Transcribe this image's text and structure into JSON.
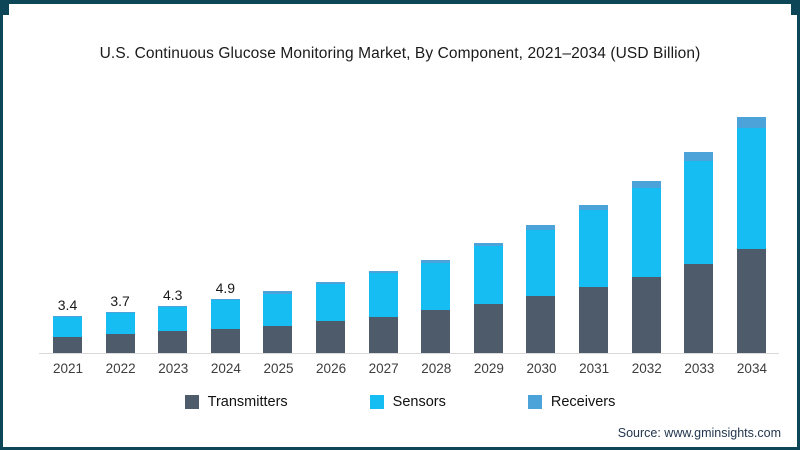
{
  "title": "U.S. Continuous Glucose Monitoring Market, By Component, 2021–2034 (USD Billion)",
  "source": "Source: www.gminsights.com",
  "colors": {
    "frame_border": "#0d4656",
    "transmitters": "#4e5b6b",
    "sensors": "#15bdf2",
    "receivers": "#4ba3d9",
    "axis_line": "#d9d9d9",
    "title_text": "#1a1a1a",
    "tick_text": "#3d3d3d",
    "source_text": "#233750",
    "background": "#ffffff"
  },
  "chart_data": {
    "type": "bar",
    "stacked": true,
    "title": "U.S. Continuous Glucose Monitoring Market, By Component, 2021–2034 (USD Billion)",
    "xlabel": "",
    "ylabel": "USD Billion",
    "ylim": [
      0,
      22
    ],
    "grid": false,
    "legend_position": "bottom",
    "categories": [
      "2021",
      "2022",
      "2023",
      "2024",
      "2025",
      "2026",
      "2027",
      "2028",
      "2029",
      "2030",
      "2031",
      "2032",
      "2033",
      "2034"
    ],
    "series": [
      {
        "name": "Transmitters",
        "color": "#4e5b6b",
        "values": [
          1.5,
          1.7,
          2.0,
          2.2,
          2.5,
          2.9,
          3.3,
          3.9,
          4.5,
          5.2,
          6.0,
          6.9,
          8.1,
          9.5
        ]
      },
      {
        "name": "Sensors",
        "color": "#15bdf2",
        "values": [
          1.8,
          1.9,
          2.2,
          2.6,
          2.9,
          3.4,
          4.0,
          4.3,
          5.2,
          6.0,
          7.0,
          8.1,
          9.4,
          11.0
        ]
      },
      {
        "name": "Receivers",
        "color": "#4ba3d9",
        "values": [
          0.1,
          0.1,
          0.1,
          0.1,
          0.2,
          0.2,
          0.2,
          0.3,
          0.3,
          0.4,
          0.5,
          0.6,
          0.8,
          1.0
        ]
      }
    ],
    "totals": [
      3.4,
      3.7,
      4.3,
      4.9,
      5.6,
      6.5,
      7.5,
      8.5,
      10.0,
      11.6,
      13.5,
      15.6,
      18.3,
      21.5
    ],
    "bar_labels": [
      "3.4",
      "3.7",
      "4.3",
      "4.9",
      "",
      "",
      "",
      "",
      "",
      "",
      "",
      "",
      "",
      ""
    ]
  }
}
